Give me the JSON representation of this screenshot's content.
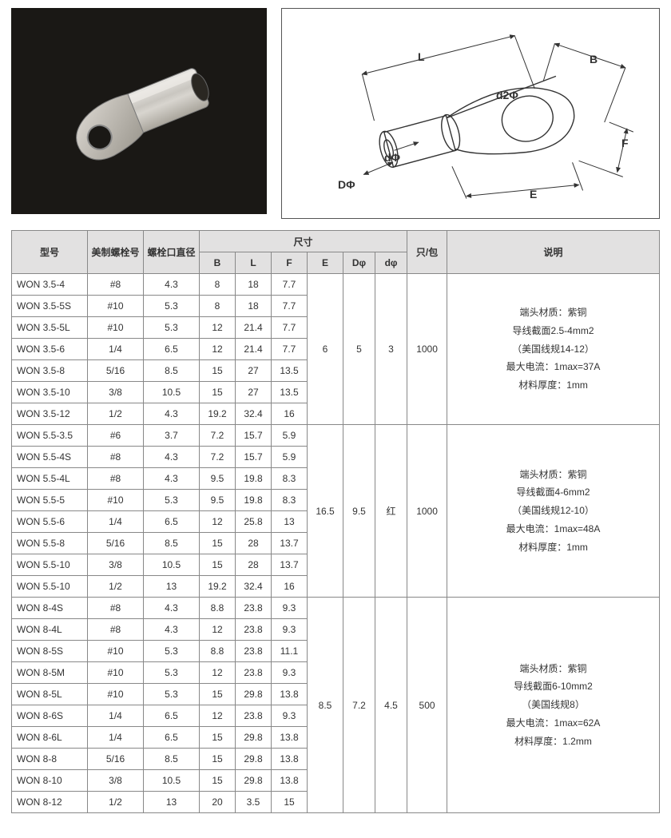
{
  "diagram": {
    "labels": {
      "B": "B",
      "L": "L",
      "d2": "d2Φ",
      "F": "F",
      "E": "E",
      "d": "dΦ",
      "D": "DΦ"
    }
  },
  "table": {
    "headers": {
      "model": "型号",
      "bolt_us": "美制螺栓号",
      "bolt_dia": "螺栓口直径",
      "dims": "尺寸",
      "B": "B",
      "L": "L",
      "F": "F",
      "E": "E",
      "Dphi": "Dφ",
      "dphi": "dφ",
      "pack": "只/包",
      "desc": "说明"
    },
    "groups": [
      {
        "E": "6",
        "Dphi": "5",
        "dphi": "3",
        "pack": "1000",
        "desc_lines": [
          "端头材质：紫铜",
          "导线截面2.5-4mm2",
          "（美国线规14-12）",
          "最大电流：1max=37A",
          "材料厚度：1mm"
        ],
        "rows": [
          {
            "m": "WON 3.5-4",
            "b": "#8",
            "d": "4.3",
            "B": "8",
            "L": "18",
            "F": "7.7"
          },
          {
            "m": "WON 3.5-5S",
            "b": "#10",
            "d": "5.3",
            "B": "8",
            "L": "18",
            "F": "7.7"
          },
          {
            "m": "WON 3.5-5L",
            "b": "#10",
            "d": "5.3",
            "B": "12",
            "L": "21.4",
            "F": "7.7"
          },
          {
            "m": "WON 3.5-6",
            "b": "1/4",
            "d": "6.5",
            "B": "12",
            "L": "21.4",
            "F": "7.7"
          },
          {
            "m": "WON 3.5-8",
            "b": "5/16",
            "d": "8.5",
            "B": "15",
            "L": "27",
            "F": "13.5"
          },
          {
            "m": "WON 3.5-10",
            "b": "3/8",
            "d": "10.5",
            "B": "15",
            "L": "27",
            "F": "13.5"
          },
          {
            "m": "WON 3.5-12",
            "b": "1/2",
            "d": "4.3",
            "B": "19.2",
            "L": "32.4",
            "F": "16"
          }
        ]
      },
      {
        "E": "16.5",
        "Dphi": "9.5",
        "dphi": "红",
        "pack": "1000",
        "desc_lines": [
          "端头材质：紫铜",
          "导线截面4-6mm2",
          "（美国线规12-10）",
          "最大电流：1max=48A",
          "材料厚度：1mm"
        ],
        "rows": [
          {
            "m": "WON 5.5-3.5",
            "b": "#6",
            "d": "3.7",
            "B": "7.2",
            "L": "15.7",
            "F": "5.9"
          },
          {
            "m": "WON 5.5-4S",
            "b": "#8",
            "d": "4.3",
            "B": "7.2",
            "L": "15.7",
            "F": "5.9"
          },
          {
            "m": "WON 5.5-4L",
            "b": "#8",
            "d": "4.3",
            "B": "9.5",
            "L": "19.8",
            "F": "8.3"
          },
          {
            "m": "WON 5.5-5",
            "b": "#10",
            "d": "5.3",
            "B": "9.5",
            "L": "19.8",
            "F": "8.3"
          },
          {
            "m": "WON 5.5-6",
            "b": "1/4",
            "d": "6.5",
            "B": "12",
            "L": "25.8",
            "F": "13"
          },
          {
            "m": "WON 5.5-8",
            "b": "5/16",
            "d": "8.5",
            "B": "15",
            "L": "28",
            "F": "13.7"
          },
          {
            "m": "WON 5.5-10",
            "b": "3/8",
            "d": "10.5",
            "B": "15",
            "L": "28",
            "F": "13.7"
          },
          {
            "m": "WON 5.5-10",
            "b": "1/2",
            "d": "13",
            "B": "19.2",
            "L": "32.4",
            "F": "16"
          }
        ]
      },
      {
        "E": "8.5",
        "Dphi": "7.2",
        "dphi": "4.5",
        "pack": "500",
        "desc_lines": [
          "端头材质：紫铜",
          "导线截面6-10mm2",
          "（美国线规8）",
          "最大电流：1max=62A",
          "材料厚度：1.2mm"
        ],
        "rows": [
          {
            "m": "WON 8-4S",
            "b": "#8",
            "d": "4.3",
            "B": "8.8",
            "L": "23.8",
            "F": "9.3"
          },
          {
            "m": "WON 8-4L",
            "b": "#8",
            "d": "4.3",
            "B": "12",
            "L": "23.8",
            "F": "9.3"
          },
          {
            "m": "WON 8-5S",
            "b": "#10",
            "d": "5.3",
            "B": "8.8",
            "L": "23.8",
            "F": "11.1"
          },
          {
            "m": "WON 8-5M",
            "b": "#10",
            "d": "5.3",
            "B": "12",
            "L": "23.8",
            "F": "9.3"
          },
          {
            "m": "WON 8-5L",
            "b": "#10",
            "d": "5.3",
            "B": "15",
            "L": "29.8",
            "F": "13.8"
          },
          {
            "m": "WON 8-6S",
            "b": "1/4",
            "d": "6.5",
            "B": "12",
            "L": "23.8",
            "F": "9.3"
          },
          {
            "m": "WON 8-6L",
            "b": "1/4",
            "d": "6.5",
            "B": "15",
            "L": "29.8",
            "F": "13.8"
          },
          {
            "m": "WON 8-8",
            "b": "5/16",
            "d": "8.5",
            "B": "15",
            "L": "29.8",
            "F": "13.8"
          },
          {
            "m": "WON 8-10",
            "b": "3/8",
            "d": "10.5",
            "B": "15",
            "L": "29.8",
            "F": "13.8"
          },
          {
            "m": "WON 8-12",
            "b": "1/2",
            "d": "13",
            "B": "20",
            "L": "3.5",
            "F": "15"
          }
        ]
      }
    ]
  }
}
